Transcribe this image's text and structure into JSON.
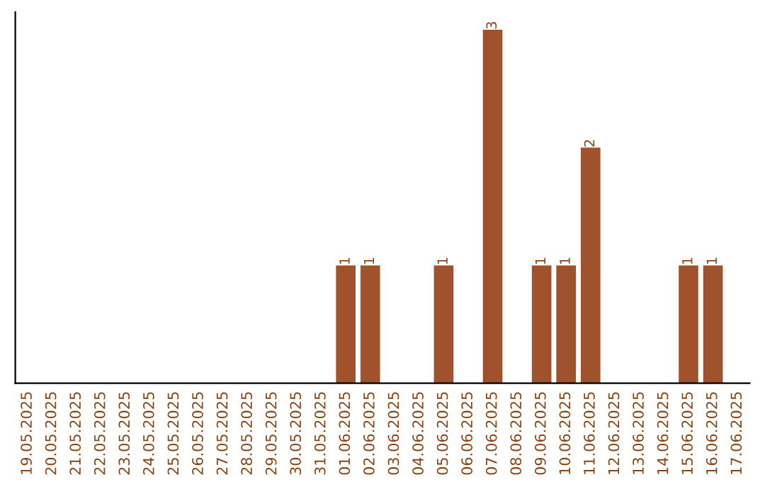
{
  "chart_data": {
    "type": "bar",
    "categories": [
      "19.05.2025",
      "20.05.2025",
      "21.05.2025",
      "22.05.2025",
      "23.05.2025",
      "24.05.2025",
      "25.05.2025",
      "26.05.2025",
      "27.05.2025",
      "28.05.2025",
      "29.05.2025",
      "30.05.2025",
      "31.05.2025",
      "01.06.2025",
      "02.06.2025",
      "03.06.2025",
      "04.06.2025",
      "05.06.2025",
      "06.06.2025",
      "07.06.2025",
      "08.06.2025",
      "09.06.2025",
      "10.06.2025",
      "11.06.2025",
      "12.06.2025",
      "13.06.2025",
      "14.06.2025",
      "15.06.2025",
      "16.06.2025",
      "17.06.2025"
    ],
    "values": [
      null,
      null,
      null,
      null,
      null,
      null,
      null,
      null,
      null,
      null,
      null,
      null,
      null,
      1,
      1,
      null,
      null,
      1,
      null,
      3,
      null,
      1,
      1,
      2,
      null,
      null,
      null,
      1,
      1,
      null
    ],
    "ylim": [
      0,
      3.15
    ],
    "value_labels": [
      null,
      null,
      null,
      null,
      null,
      null,
      null,
      null,
      null,
      null,
      null,
      null,
      null,
      "1",
      "1",
      null,
      null,
      "1",
      null,
      "3",
      null,
      "1",
      "1",
      "2",
      null,
      null,
      null,
      "1",
      "1",
      null
    ],
    "color": "#a0522d",
    "tick_labels": "x",
    "grid": false,
    "legend": false
  }
}
